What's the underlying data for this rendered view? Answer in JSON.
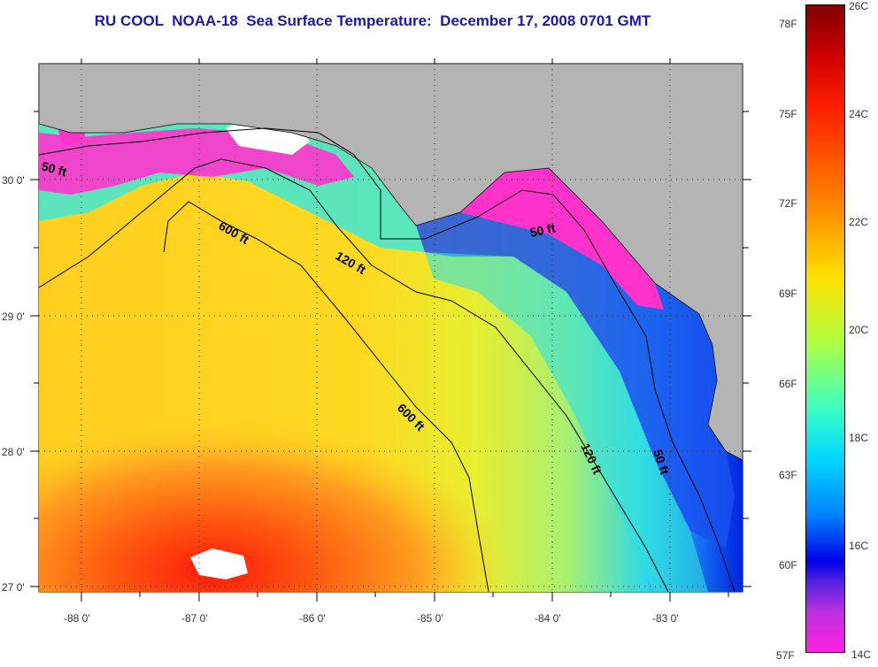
{
  "title": "RU COOL  NOAA-18  Sea Surface Temperature:  December 17, 2008 0701 GMT",
  "map": {
    "lon_labels": [
      "-88 0'",
      "-87 0'",
      "-86 0'",
      "-85 0'",
      "-84 0'",
      "-83 0'"
    ],
    "lat_labels": [
      "30 0'",
      "29 0'",
      "28 0'",
      "27 0'"
    ],
    "contour_labels": [
      "50 ft",
      "600 ft",
      "120 ft",
      "50 ft",
      "600 ft",
      "120 ft",
      "50 ft"
    ],
    "colors": {
      "land": "#b4b4b4",
      "grid": "#000000",
      "warm": "#ff3a10",
      "cold": "#ff33cc"
    }
  },
  "colorbar": {
    "fahrenheit": [
      "78F",
      "75F",
      "72F",
      "69F",
      "66F",
      "63F",
      "60F",
      "57F"
    ],
    "celsius": [
      "26C",
      "24C",
      "22C",
      "20C",
      "18C",
      "16C",
      "14C"
    ],
    "range_c": [
      14,
      26
    ]
  }
}
